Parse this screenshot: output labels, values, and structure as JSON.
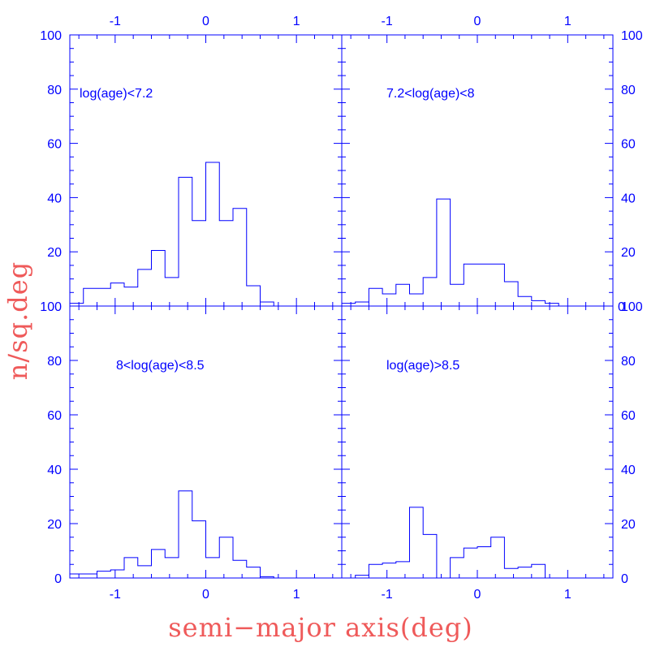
{
  "figure": {
    "xlabel": "semi−major axis(deg)",
    "ylabel": "n/sq.deg",
    "colors": {
      "axes": "#0000ff",
      "histogram": "#0000ff",
      "axis_titles": "#ef5a5a"
    }
  },
  "chart_data": [
    {
      "type": "histogram",
      "panel": "top-left",
      "label": "log(age)<7.2",
      "xlim": [
        -1.5,
        1.5
      ],
      "ylim": [
        0,
        100
      ],
      "x_ticks": [
        -1,
        0,
        1
      ],
      "y_ticks": [
        0,
        20,
        40,
        60,
        80,
        100
      ],
      "y_tick_labels": [
        "",
        "20",
        "40",
        "60",
        "80",
        "100"
      ],
      "bin_edges": [
        -1.5,
        -1.35,
        -1.2,
        -1.05,
        -0.9,
        -0.75,
        -0.6,
        -0.45,
        -0.3,
        -0.15,
        0.0,
        0.15,
        0.3,
        0.45,
        0.6,
        0.75,
        0.9,
        1.05,
        1.2,
        1.35,
        1.5
      ],
      "values": [
        1,
        6.5,
        6.5,
        8.5,
        7,
        13.5,
        20.5,
        10.5,
        47.5,
        31.5,
        53,
        31.5,
        36,
        7.5,
        1.5,
        0,
        0,
        0,
        0,
        0
      ]
    },
    {
      "type": "histogram",
      "panel": "top-right",
      "label": "7.2<log(age)<8",
      "xlim": [
        -1.5,
        1.5
      ],
      "ylim": [
        0,
        100
      ],
      "x_ticks": [
        -1,
        0,
        1
      ],
      "y_ticks": [
        0,
        20,
        40,
        60,
        80,
        100
      ],
      "y_tick_labels": [
        "",
        "",
        "",
        "",
        "",
        ""
      ],
      "bin_edges": [
        -1.5,
        -1.35,
        -1.2,
        -1.05,
        -0.9,
        -0.75,
        -0.6,
        -0.45,
        -0.3,
        -0.15,
        0.0,
        0.15,
        0.3,
        0.45,
        0.6,
        0.75,
        0.9,
        1.05,
        1.2,
        1.35,
        1.5
      ],
      "values": [
        1,
        1.5,
        6.5,
        4.5,
        8,
        4.5,
        10.5,
        39.5,
        8,
        15.5,
        15.5,
        15.5,
        9,
        3.5,
        2,
        1,
        0,
        0,
        0,
        0
      ]
    },
    {
      "type": "histogram",
      "panel": "bottom-left",
      "label": "8<log(age)<8.5",
      "xlim": [
        -1.5,
        1.5
      ],
      "ylim": [
        0,
        100
      ],
      "x_ticks": [
        -1,
        0,
        1
      ],
      "y_ticks": [
        0,
        20,
        40,
        60,
        80,
        100
      ],
      "y_tick_labels": [
        "0",
        "20",
        "40",
        "60",
        "80",
        "100"
      ],
      "bin_edges": [
        -1.5,
        -1.35,
        -1.2,
        -1.05,
        -0.9,
        -0.75,
        -0.6,
        -0.45,
        -0.3,
        -0.15,
        0.0,
        0.15,
        0.3,
        0.45,
        0.6,
        0.75,
        0.9,
        1.05,
        1.2,
        1.35,
        1.5
      ],
      "values": [
        1.5,
        1.5,
        2.5,
        3,
        7.5,
        4.5,
        10.5,
        7.5,
        32,
        21,
        7.5,
        15,
        6.5,
        4,
        0.5,
        0,
        0,
        0,
        0,
        0
      ]
    },
    {
      "type": "histogram",
      "panel": "bottom-right",
      "label": "log(age)>8.5",
      "xlim": [
        -1.5,
        1.5
      ],
      "ylim": [
        0,
        100
      ],
      "x_ticks": [
        -1,
        0,
        1
      ],
      "y_ticks": [
        0,
        20,
        40,
        60,
        80,
        100
      ],
      "y_tick_labels": [
        "",
        "",
        "",
        "",
        "",
        ""
      ],
      "bin_edges": [
        -1.5,
        -1.35,
        -1.2,
        -1.05,
        -0.9,
        -0.75,
        -0.6,
        -0.45,
        -0.3,
        -0.15,
        0.0,
        0.15,
        0.3,
        0.45,
        0.6,
        0.75,
        0.9,
        1.05,
        1.2,
        1.35,
        1.5
      ],
      "values": [
        0,
        1,
        5,
        5.5,
        6,
        26,
        16,
        0,
        7.5,
        11,
        11.5,
        15,
        3.5,
        4,
        5,
        0,
        0,
        0,
        0,
        0
      ]
    }
  ],
  "top_x_ticks": [
    -1,
    0,
    1
  ],
  "top_x_tick_labels": [
    "-1",
    "0",
    "1",
    "-1",
    "0",
    "1"
  ],
  "bottom_x_tick_labels": [
    "-1",
    "0",
    "1",
    "-1",
    "0",
    "1"
  ],
  "right_y_tick_labels_top": [
    "",
    "20",
    "40",
    "60",
    "80",
    "100"
  ],
  "right_y_tick_labels_bottom": [
    "0",
    "20",
    "40",
    "60",
    "80",
    "100"
  ],
  "right_axis_zero_label_top": "0"
}
